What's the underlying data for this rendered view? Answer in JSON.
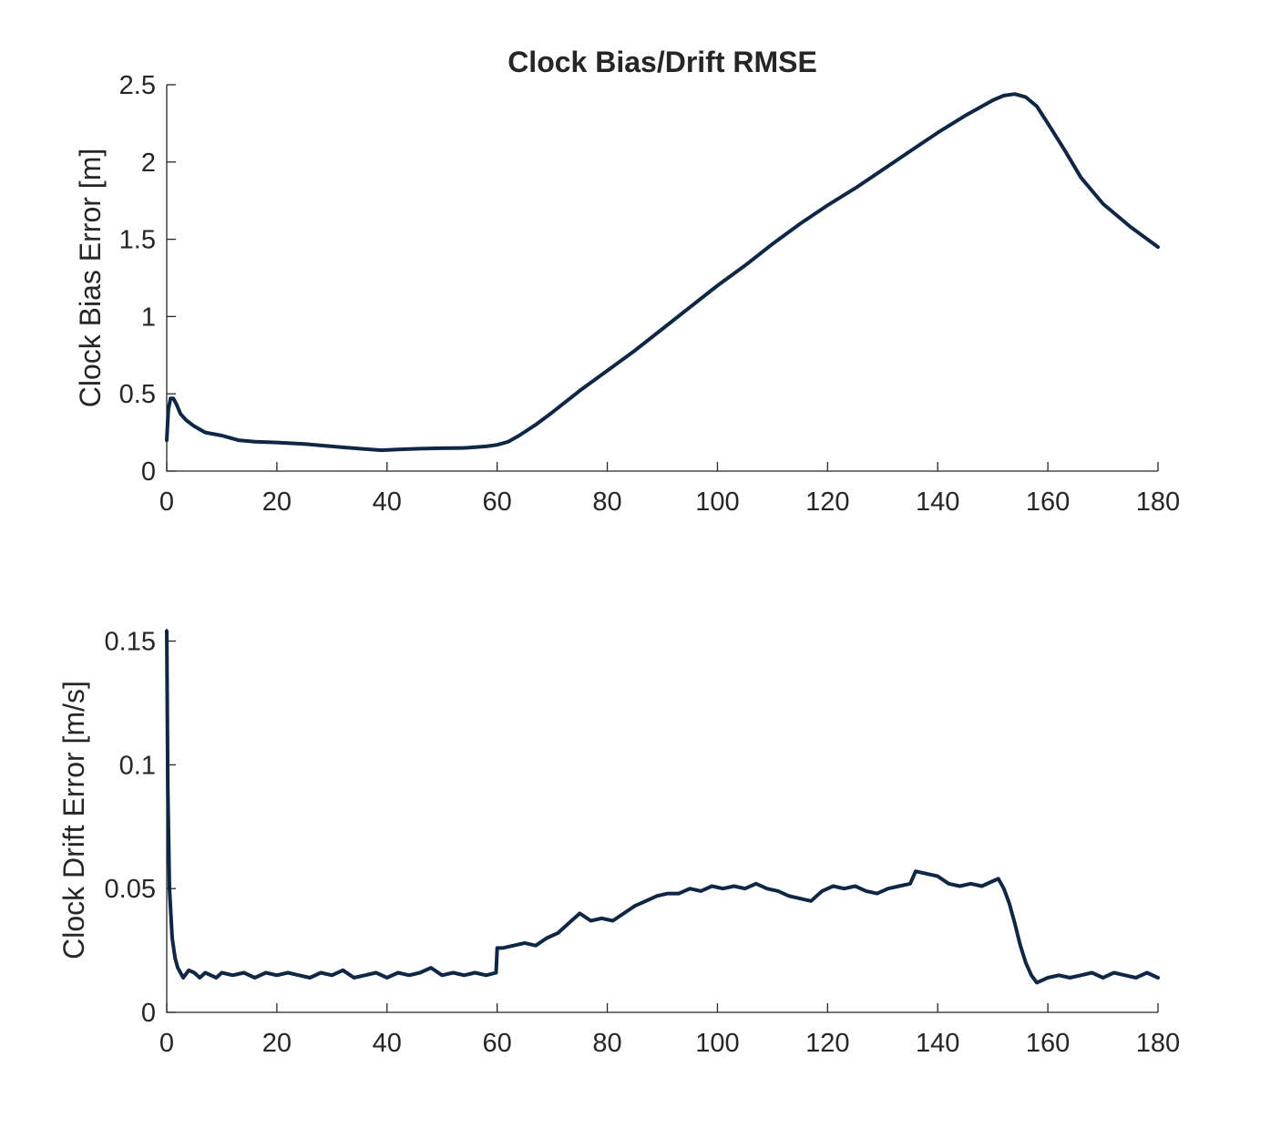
{
  "title": "Clock Bias/Drift RMSE",
  "colors": {
    "line": "#0f2745",
    "axis": "#262626",
    "background": "#ffffff"
  },
  "chart_data": [
    {
      "type": "line",
      "title": "Clock Bias/Drift RMSE",
      "xlabel": "",
      "ylabel": "Clock Bias Error [m]",
      "xlim": [
        0,
        180
      ],
      "ylim": [
        0,
        2.5
      ],
      "xticks": [
        0,
        20,
        40,
        60,
        80,
        100,
        120,
        140,
        160,
        180
      ],
      "yticks": [
        0,
        0.5,
        1,
        1.5,
        2,
        2.5
      ],
      "xtick_labels": [
        "0",
        "20",
        "40",
        "60",
        "80",
        "100",
        "120",
        "140",
        "160",
        "180"
      ],
      "ytick_labels": [
        "0",
        "0.5",
        "1",
        "1.5",
        "2",
        "2.5"
      ],
      "grid": false,
      "series": [
        {
          "x": [
            0,
            0.3,
            0.7,
            1.2,
            1.8,
            2.5,
            3.5,
            5,
            7,
            10,
            13,
            16,
            20,
            25,
            30,
            35,
            39,
            42,
            46,
            50,
            54,
            58,
            60,
            62,
            64,
            67,
            70,
            75,
            80,
            85,
            90,
            95,
            100,
            105,
            110,
            115,
            120,
            125,
            130,
            135,
            140,
            145,
            150,
            152,
            154,
            156,
            158,
            160,
            163,
            166,
            170,
            175,
            180
          ],
          "y": [
            0.2,
            0.4,
            0.47,
            0.47,
            0.43,
            0.37,
            0.33,
            0.29,
            0.25,
            0.23,
            0.2,
            0.19,
            0.185,
            0.175,
            0.16,
            0.145,
            0.135,
            0.14,
            0.145,
            0.148,
            0.15,
            0.16,
            0.17,
            0.19,
            0.23,
            0.3,
            0.38,
            0.52,
            0.65,
            0.78,
            0.92,
            1.06,
            1.2,
            1.33,
            1.47,
            1.6,
            1.72,
            1.83,
            1.95,
            2.07,
            2.19,
            2.3,
            2.4,
            2.43,
            2.44,
            2.42,
            2.36,
            2.25,
            2.08,
            1.9,
            1.73,
            1.58,
            1.45
          ]
        }
      ]
    },
    {
      "type": "line",
      "xlabel": "",
      "ylabel": "Clock Drift Error [m/s]",
      "xlim": [
        0,
        180
      ],
      "ylim": [
        0,
        0.155
      ],
      "xticks": [
        0,
        20,
        40,
        60,
        80,
        100,
        120,
        140,
        160,
        180
      ],
      "yticks": [
        0,
        0.05,
        0.1,
        0.15
      ],
      "xtick_labels": [
        "0",
        "20",
        "40",
        "60",
        "80",
        "100",
        "120",
        "140",
        "160",
        "180"
      ],
      "ytick_labels": [
        "0",
        "0.05",
        "0.1",
        "0.15"
      ],
      "grid": false,
      "series": [
        {
          "x": [
            0,
            0.2,
            0.5,
            1,
            1.5,
            2,
            2.5,
            3,
            4,
            5,
            6,
            7,
            8,
            9,
            10,
            12,
            14,
            16,
            18,
            20,
            22,
            24,
            26,
            28,
            30,
            32,
            34,
            36,
            38,
            40,
            42,
            44,
            46,
            48,
            50,
            52,
            54,
            56,
            58,
            59.8,
            60,
            61,
            63,
            65,
            67,
            69,
            71,
            73,
            75,
            77,
            79,
            81,
            83,
            85,
            87,
            89,
            91,
            93,
            95,
            97,
            99,
            101,
            103,
            105,
            107,
            109,
            111,
            113,
            115,
            117,
            119,
            121,
            123,
            125,
            127,
            129,
            131,
            133,
            135,
            136,
            138,
            140,
            142,
            144,
            146,
            148,
            150,
            151,
            152,
            153,
            154,
            155,
            156,
            157,
            158,
            160,
            162,
            164,
            166,
            168,
            170,
            172,
            174,
            176,
            178,
            180
          ],
          "y": [
            0.154,
            0.09,
            0.05,
            0.03,
            0.022,
            0.018,
            0.016,
            0.014,
            0.017,
            0.016,
            0.014,
            0.016,
            0.015,
            0.014,
            0.016,
            0.015,
            0.016,
            0.014,
            0.016,
            0.015,
            0.016,
            0.015,
            0.014,
            0.016,
            0.015,
            0.017,
            0.014,
            0.015,
            0.016,
            0.014,
            0.016,
            0.015,
            0.016,
            0.018,
            0.015,
            0.016,
            0.015,
            0.016,
            0.015,
            0.016,
            0.026,
            0.026,
            0.027,
            0.028,
            0.027,
            0.03,
            0.032,
            0.036,
            0.04,
            0.037,
            0.038,
            0.037,
            0.04,
            0.043,
            0.045,
            0.047,
            0.048,
            0.048,
            0.05,
            0.049,
            0.051,
            0.05,
            0.051,
            0.05,
            0.052,
            0.05,
            0.049,
            0.047,
            0.046,
            0.045,
            0.049,
            0.051,
            0.05,
            0.051,
            0.049,
            0.048,
            0.05,
            0.051,
            0.052,
            0.057,
            0.056,
            0.055,
            0.052,
            0.051,
            0.052,
            0.051,
            0.053,
            0.054,
            0.05,
            0.044,
            0.036,
            0.027,
            0.02,
            0.015,
            0.012,
            0.014,
            0.015,
            0.014,
            0.015,
            0.016,
            0.014,
            0.016,
            0.015,
            0.014,
            0.016,
            0.014
          ]
        }
      ]
    }
  ]
}
